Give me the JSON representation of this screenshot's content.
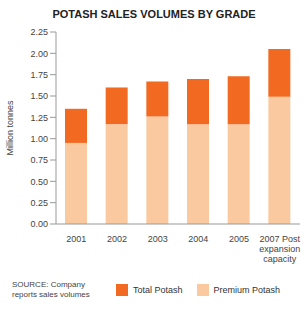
{
  "chart_data": {
    "type": "bar",
    "title": "POTASH SALES VOLUMES BY GRADE",
    "y_label": "Million tonnes",
    "categories": [
      "2001",
      "2002",
      "2003",
      "2004",
      "2005",
      "2007 Post expansion capacity"
    ],
    "series": [
      {
        "name": "Premium Potash",
        "color": "#fbc9a0",
        "values": [
          0.95,
          1.17,
          1.26,
          1.17,
          1.17,
          1.49
        ]
      },
      {
        "name": "Total Potash",
        "color": "#f26a21",
        "values": [
          0.4,
          0.43,
          0.41,
          0.53,
          0.56,
          0.56
        ]
      }
    ],
    "stacked": true,
    "ylim": [
      0,
      2.25
    ],
    "yticks": [
      {
        "value": 0,
        "label": "0.00"
      },
      0.25,
      {
        "value": 0.5,
        "label": "0.50"
      },
      0.75,
      {
        "value": 1,
        "label": "1.00"
      },
      1.25,
      {
        "value": 1.5,
        "label": "1.50"
      },
      1.75,
      {
        "value": 2,
        "label": "2.00"
      },
      2.25
    ],
    "grid": false,
    "legend": "bottom",
    "source": "SOURCE: Company reports sales volumes"
  }
}
